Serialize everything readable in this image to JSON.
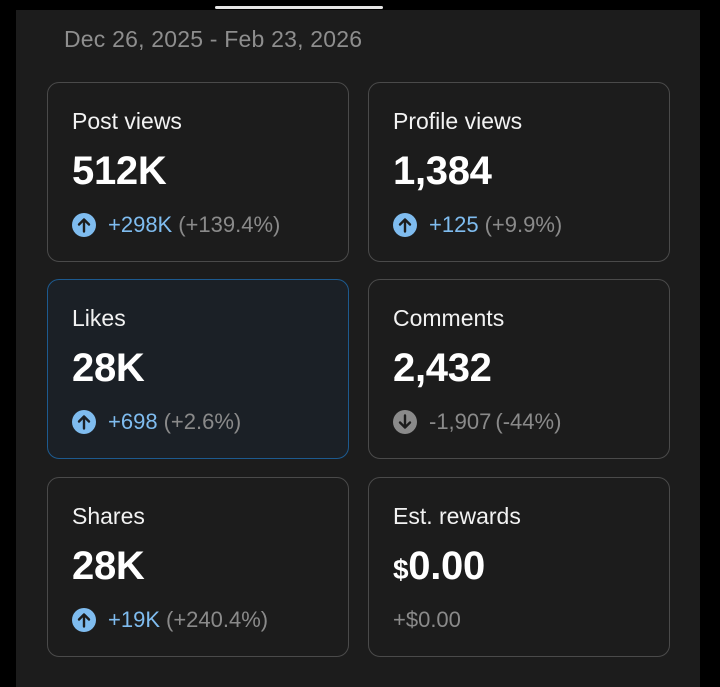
{
  "date_range": "Dec 26, 2025 - Feb 23, 2026",
  "colors": {
    "up_accent": "#7fbcef",
    "down_accent": "#8a8a8a",
    "selected_border": "#1d5a8f"
  },
  "cards": {
    "post_views": {
      "label": "Post views",
      "value": "512K",
      "delta": "+298K",
      "percent": "(+139.4%)",
      "trend_icon": "arrow-up-circle-icon"
    },
    "profile_views": {
      "label": "Profile views",
      "value": "1,384",
      "delta": "+125",
      "percent": "(+9.9%)",
      "trend_icon": "arrow-up-circle-icon"
    },
    "likes": {
      "label": "Likes",
      "value": "28K",
      "delta": "+698",
      "percent": "(+2.6%)",
      "trend_icon": "arrow-up-circle-icon"
    },
    "comments": {
      "label": "Comments",
      "value": "2,432",
      "delta": "-1,907",
      "percent": "(-44%)",
      "trend_icon": "arrow-down-circle-icon"
    },
    "shares": {
      "label": "Shares",
      "value": "28K",
      "delta": "+19K",
      "percent": "(+240.4%)",
      "trend_icon": "arrow-up-circle-icon"
    },
    "est_rewards": {
      "label": "Est. rewards",
      "currency": "$",
      "amount": "0.00",
      "delta": "+$0.00"
    }
  }
}
